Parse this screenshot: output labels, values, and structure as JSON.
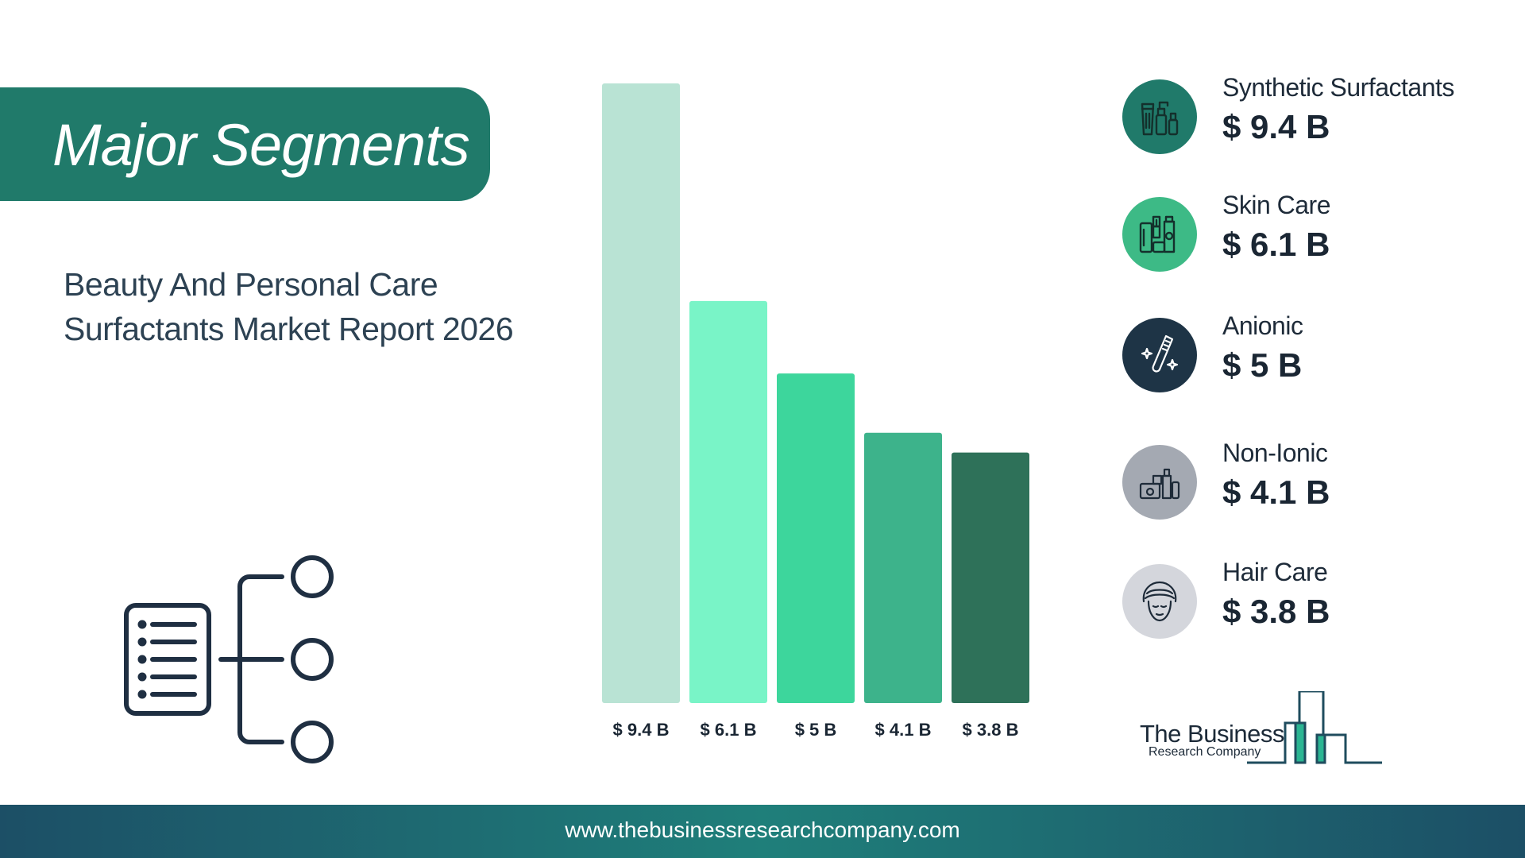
{
  "banner": {
    "title": "Major Segments"
  },
  "subtitle": {
    "line1": "Beauty And Personal Care",
    "line2": "Surfactants Market Report 2026"
  },
  "chart_data": {
    "type": "bar",
    "categories": [
      "Synthetic Surfactants",
      "Skin Care",
      "Anionic",
      "Non-Ionic",
      "Hair Care"
    ],
    "values": [
      9.4,
      6.1,
      5.0,
      4.1,
      3.8
    ],
    "value_labels": [
      "$ 9.4 B",
      "$ 6.1 B",
      "$ 5 B",
      "$ 4.1 B",
      "$ 3.8 B"
    ],
    "colors": [
      "#b9e3d4",
      "#79f4c7",
      "#3dd69c",
      "#3db38b",
      "#2e7159"
    ],
    "title": "",
    "xlabel": "",
    "ylabel": "",
    "unit": "$ B",
    "ylim": [
      0,
      9.4
    ],
    "grid": false,
    "legend": "right"
  },
  "legend": {
    "items": [
      {
        "name": "Synthetic Surfactants",
        "value": "$ 9.4 B",
        "icon": "cosmetics-bottles-icon",
        "circle_color": "#207a6a"
      },
      {
        "name": "Skin Care",
        "value": "$ 6.1 B",
        "icon": "skincare-products-icon",
        "circle_color": "#3dba86"
      },
      {
        "name": "Anionic",
        "value": "$ 5 B",
        "icon": "toothbrush-sparkle-icon",
        "circle_color": "#1e3446"
      },
      {
        "name": "Non-Ionic",
        "value": "$ 4.1 B",
        "icon": "cream-jar-dropper-icon",
        "circle_color": "#a4a9b2"
      },
      {
        "name": "Hair Care",
        "value": "$ 3.8 B",
        "icon": "hair-towel-face-icon",
        "circle_color": "#d4d6dc"
      }
    ]
  },
  "logo": {
    "line1": "The Business",
    "line2": "Research Company",
    "accent": "#2bb592",
    "dark": "#1f4c5e"
  },
  "footer": {
    "url": "www.thebusinessresearchcompany.com"
  }
}
